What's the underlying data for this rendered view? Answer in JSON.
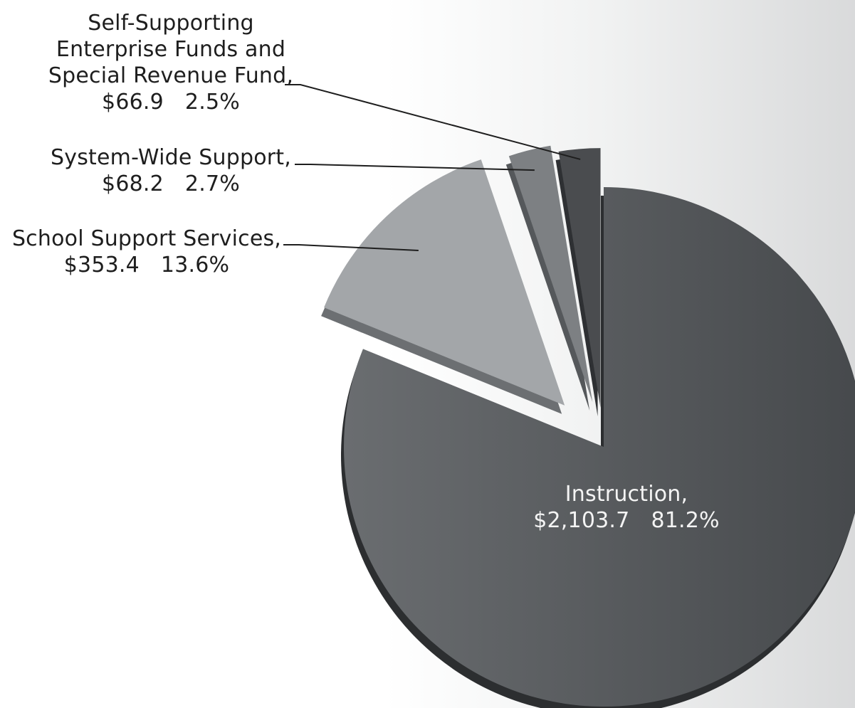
{
  "chart_data": {
    "type": "pie",
    "style": "3d-exploded",
    "slices": [
      {
        "name": "Instruction",
        "value": 2103.7,
        "value_label": "$2,103.7",
        "percent": 81.2,
        "percent_label": "81.2%",
        "color": "#55585b"
      },
      {
        "name": "School Support Services",
        "value": 353.4,
        "value_label": "$353.4",
        "percent": 13.6,
        "percent_label": "13.6%",
        "color": "#a3a6a9"
      },
      {
        "name": "System-Wide Support",
        "value": 68.2,
        "value_label": "$68.2",
        "percent": 2.7,
        "percent_label": "2.7%",
        "color": "#7d8083"
      },
      {
        "name": "Self-Supporting Enterprise Funds and Special Revenue Fund",
        "value": 66.9,
        "value_label": "$66.9",
        "percent": 2.5,
        "percent_label": "2.5%",
        "color": "#4a4c4f"
      }
    ]
  },
  "labels": {
    "instruction": {
      "line1": "Instruction,",
      "value": "$2,103.7",
      "percent": "81.2%"
    },
    "school_support": {
      "line1": "School Support Services,",
      "value": "$353.4",
      "percent": "13.6%"
    },
    "system_wide": {
      "line1": "System-Wide Support,",
      "value": "$68.2",
      "percent": "2.7%"
    },
    "self_supporting": {
      "line1": "Self-Supporting",
      "line2": "Enterprise Funds and",
      "line3": "Special Revenue Fund,",
      "value": "$66.9",
      "percent": "2.5%"
    }
  }
}
